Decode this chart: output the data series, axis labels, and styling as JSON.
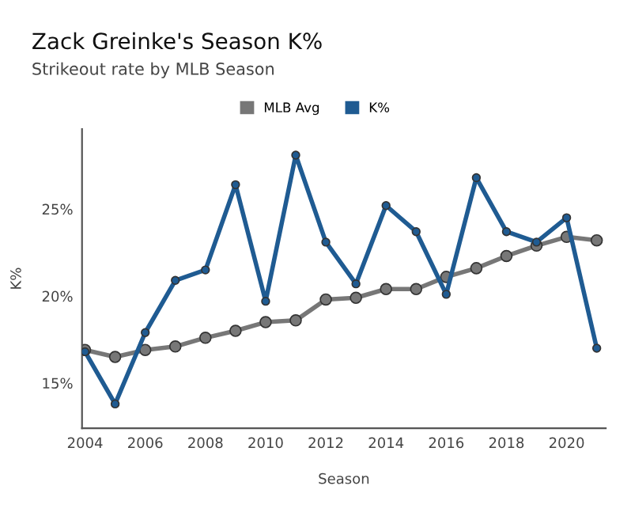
{
  "chart_data": {
    "type": "line",
    "title": "Zack Greinke's Season K%",
    "subtitle": "Strikeout rate by MLB Season",
    "xlabel": "Season",
    "ylabel": "K%",
    "x": [
      2004,
      2005,
      2006,
      2007,
      2008,
      2009,
      2010,
      2011,
      2012,
      2013,
      2014,
      2015,
      2016,
      2017,
      2018,
      2019,
      2020,
      2021
    ],
    "series": [
      {
        "name": "MLB Avg",
        "color": "#777777",
        "values": [
          16.9,
          16.5,
          16.9,
          17.1,
          17.6,
          18.0,
          18.5,
          18.6,
          19.8,
          19.9,
          20.4,
          20.4,
          21.1,
          21.6,
          22.3,
          22.9,
          23.4,
          23.2
        ]
      },
      {
        "name": "K%",
        "color": "#1f5b92",
        "values": [
          16.8,
          13.8,
          17.9,
          20.9,
          21.5,
          26.4,
          19.7,
          28.1,
          23.1,
          20.7,
          25.2,
          23.7,
          20.1,
          26.8,
          23.7,
          23.1,
          24.5,
          17.0
        ]
      }
    ],
    "xlim": [
      2003.9,
      2021.3
    ],
    "ylim": [
      12.4,
      29.6
    ],
    "xticks": [
      2004,
      2006,
      2008,
      2010,
      2012,
      2014,
      2016,
      2018,
      2020
    ],
    "yticks": [
      {
        "value": 15,
        "label": "15%"
      },
      {
        "value": 20,
        "label": "20%"
      },
      {
        "value": 25,
        "label": "25%"
      }
    ],
    "grid": false,
    "legend": "top",
    "marker": "circle",
    "line_style": "solid"
  }
}
